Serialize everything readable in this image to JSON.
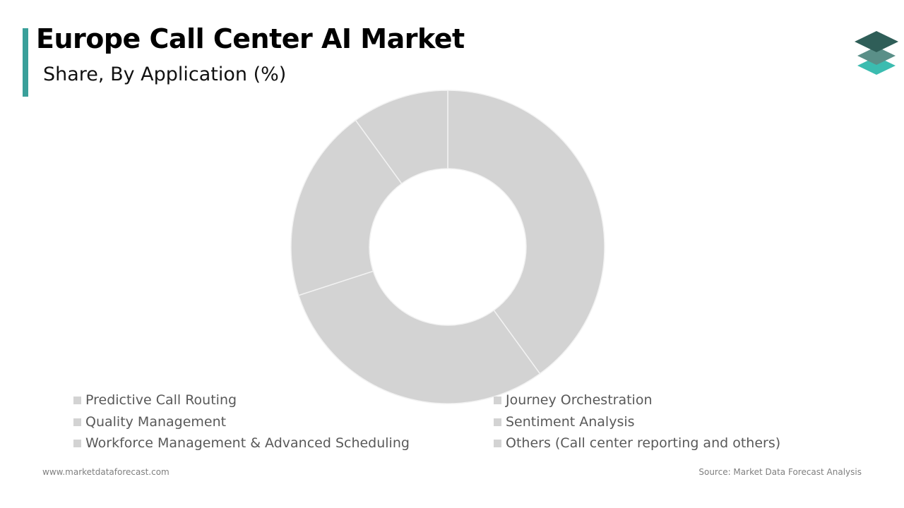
{
  "header": {
    "title": "Europe Call Center AI Market",
    "subtitle": "Share, By Application (%)"
  },
  "colors": {
    "accent": "#3aa09a",
    "slice_fill": "#d3d3d3",
    "slice_border": "#f2f2f2",
    "logo_top": "#2f5e58",
    "logo_middle": "#5a8f88",
    "logo_bottom": "#3bbcb0"
  },
  "logo": {
    "icon": "stacked-layers-icon"
  },
  "chart_data": {
    "type": "donut",
    "title": "Europe Call Center AI Market",
    "subtitle": "Share, By Application (%)",
    "categories": [
      "Predictive Call Routing",
      "Quality Management",
      "Workforce Management & Advanced Scheduling",
      "Journey Orchestration",
      "Sentiment Analysis",
      "Others (Call center reporting and others)"
    ],
    "values": [
      40,
      30,
      20,
      10,
      0,
      0
    ],
    "data_labels": "none",
    "legend_position": "bottom",
    "legend_columns": 2
  },
  "footer": {
    "website": "www.marketdataforecast.com",
    "source": "Source: Market Data Forecast Analysis"
  }
}
